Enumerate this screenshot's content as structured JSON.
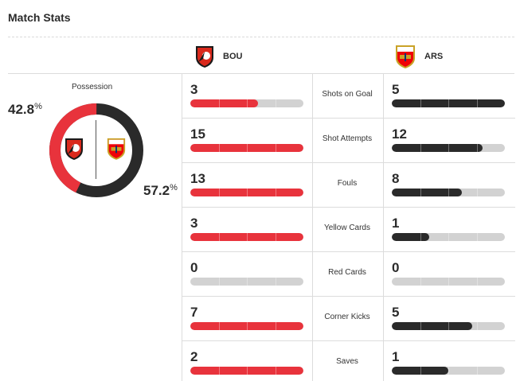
{
  "header": {
    "title": "Match Stats"
  },
  "teams": {
    "home": {
      "abbr": "BOU",
      "crest_icon": "bournemouth-crest-icon",
      "color": "#e8333c"
    },
    "away": {
      "abbr": "ARS",
      "crest_icon": "arsenal-crest-icon",
      "color": "#2a2a2a"
    }
  },
  "possession": {
    "label": "Possession",
    "home_value": "42.8",
    "away_value": "57.2",
    "unit": "%",
    "home_fraction": 0.428,
    "away_fraction": 0.572
  },
  "stats": [
    {
      "label": "Shots on Goal",
      "home": "3",
      "away": "5",
      "home_fill": 0.6,
      "away_fill": 1.0
    },
    {
      "label": "Shot Attempts",
      "home": "15",
      "away": "12",
      "home_fill": 1.0,
      "away_fill": 0.8
    },
    {
      "label": "Fouls",
      "home": "13",
      "away": "8",
      "home_fill": 1.0,
      "away_fill": 0.62
    },
    {
      "label": "Yellow Cards",
      "home": "3",
      "away": "1",
      "home_fill": 1.0,
      "away_fill": 0.33
    },
    {
      "label": "Red Cards",
      "home": "0",
      "away": "0",
      "home_fill": 0.0,
      "away_fill": 0.0
    },
    {
      "label": "Corner Kicks",
      "home": "7",
      "away": "5",
      "home_fill": 1.0,
      "away_fill": 0.71
    },
    {
      "label": "Saves",
      "home": "2",
      "away": "1",
      "home_fill": 1.0,
      "away_fill": 0.5
    }
  ]
}
